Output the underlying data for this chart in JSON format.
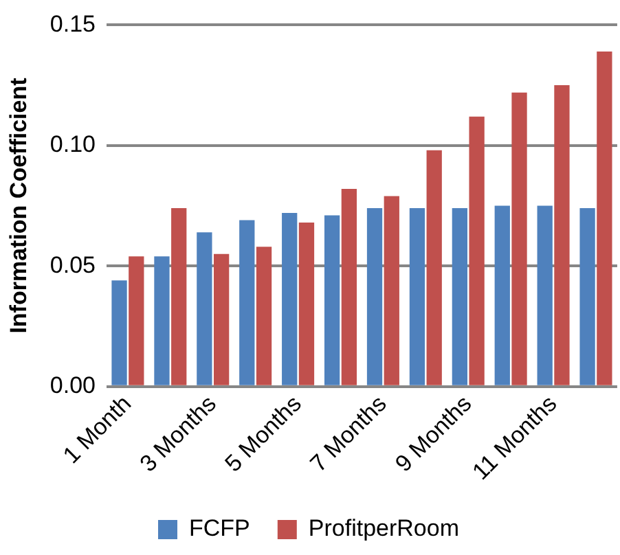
{
  "chart_data": {
    "type": "bar",
    "ylabel": "Information Coefficient",
    "categories": [
      "1 Month",
      null,
      "3 Months",
      null,
      "5 Months",
      null,
      "7 Months",
      null,
      "9 Months",
      null,
      "11 Months",
      null
    ],
    "series": [
      {
        "name": "FCFP",
        "color": "#4f81bd",
        "values": [
          0.044,
          0.054,
          0.064,
          0.069,
          0.072,
          0.071,
          0.074,
          0.074,
          0.074,
          0.075,
          0.075,
          0.074
        ]
      },
      {
        "name": "ProfitperRoom",
        "color": "#c0504d",
        "values": [
          0.054,
          0.074,
          0.055,
          0.058,
          0.068,
          0.082,
          0.079,
          0.098,
          0.112,
          0.122,
          0.125,
          0.139
        ]
      }
    ],
    "ylim": [
      0,
      0.15
    ],
    "yticks": [
      {
        "value": 0,
        "label": "0.00"
      },
      {
        "value": 0.05,
        "label": "0.05"
      },
      {
        "value": 0.1,
        "label": "0.10"
      },
      {
        "value": 0.15,
        "label": "0.15"
      }
    ],
    "grid": "y",
    "legend": "bottom"
  }
}
